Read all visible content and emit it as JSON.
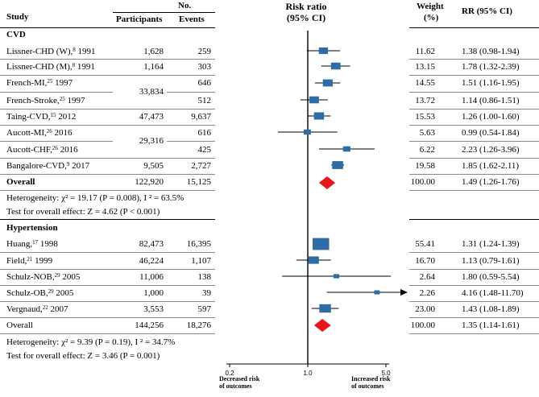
{
  "headers": {
    "study": "Study",
    "no": "No.",
    "participants": "Participants",
    "events": "Events",
    "rr_title1": "Risk ratio",
    "rr_title2": "(95% CI)",
    "weight1": "Weight",
    "weight2": "(%)",
    "rrci": "RR (95% CI)"
  },
  "groups": [
    {
      "name": "CVD",
      "rows": [
        {
          "label": "Lissner-CHD (W),",
          "ref": "8",
          "year": " 1991",
          "participants": "1,628",
          "events": "259",
          "weight": "11.62",
          "rr": "1.38 (0.98-1.94)"
        },
        {
          "label": "Lissner-CHD (M),",
          "ref": "8",
          "year": " 1991",
          "participants": "1,164",
          "events": "303",
          "weight": "13.15",
          "rr": "1.78 (1.32-2.39)"
        },
        {
          "label": "French-MI,",
          "ref": "25",
          "year": " 1997",
          "participants": "",
          "events": "646",
          "weight": "14.55",
          "rr": "1.51 (1.16-1.95)"
        },
        {
          "label": "French-Stroke,",
          "ref": "25",
          "year": " 1997",
          "participants": "",
          "events": "512",
          "weight": "13.72",
          "rr": "1.14 (0.86-1.51)"
        },
        {
          "label": "Taing-CVD,",
          "ref": "15",
          "year": " 2012",
          "participants": "47,473",
          "events": "9,637",
          "weight": "15.53",
          "rr": "1.26 (1.00-1.60)"
        },
        {
          "label": "Aucott-MI,",
          "ref": "26",
          "year": " 2016",
          "participants": "",
          "events": "616",
          "weight": "5.63",
          "rr": "0.99 (0.54-1.84)"
        },
        {
          "label": "Aucott-CHF,",
          "ref": "26",
          "year": " 2016",
          "participants": "",
          "events": "425",
          "weight": "6.22",
          "rr": "2.23 (1.26-3.96)"
        },
        {
          "label": "Bangalore-CVD,",
          "ref": "9",
          "year": " 2017",
          "participants": "9,505",
          "events": "2,727",
          "weight": "19.58",
          "rr": "1.85 (1.62-2.11)"
        }
      ],
      "shared_participants": [
        "33,834",
        "29,316"
      ],
      "overall": {
        "label": "Overall",
        "participants": "122,920",
        "events": "15,125",
        "weight": "100.00",
        "rr": "1.49 (1.26-1.76)"
      },
      "heterogeneity": "Heterogeneity: χ² = 19.17 (P = 0.008), I ² = 63.5%",
      "effect_test": "Test for overall effect: Z = 4.62 (P < 0.001)"
    },
    {
      "name": "Hypertension",
      "rows": [
        {
          "label": "Huang,",
          "ref": "17",
          "year": " 1998",
          "participants": "82,473",
          "events": "16,395",
          "weight": "55.41",
          "rr": "1.31 (1.24-1.39)"
        },
        {
          "label": "Field,",
          "ref": "21",
          "year": " 1999",
          "participants": "46,224",
          "events": "1,107",
          "weight": "16.70",
          "rr": "1.13 (0.79-1.61)"
        },
        {
          "label": "Schulz-NOB,",
          "ref": "29",
          "year": " 2005",
          "participants": "11,006",
          "events": "138",
          "weight": "2.64",
          "rr": "1.80 (0.59-5.54)"
        },
        {
          "label": "Schulz-OB,",
          "ref": "29",
          "year": " 2005",
          "participants": "1,000",
          "events": "39",
          "weight": "2.26",
          "rr": "4.16 (1.48-11.70)"
        },
        {
          "label": "Vergnaud,",
          "ref": "22",
          "year": " 2007",
          "participants": "3,553",
          "events": "597",
          "weight": "23.00",
          "rr": "1.43 (1.08-1.89)"
        }
      ],
      "overall": {
        "label": "Overall",
        "participants": "144,256",
        "events": "18,276",
        "weight": "100.00",
        "rr": "1.35 (1.14-1.61)"
      },
      "heterogeneity": "Heterogeneity: χ² = 9.39 (P = 0.19), I ² = 34.7%",
      "effect_test": "Test for overall effect: Z = 3.46 (P = 0.001)"
    }
  ],
  "axis": {
    "ticks": [
      "0.2",
      "1.0",
      "5.0"
    ],
    "left_label1": "Decreased risk",
    "left_label2": "of outcomes",
    "right_label1": "Increased risk",
    "right_label2": "of outcomes"
  },
  "chart_data": {
    "type": "forest",
    "scale": "log",
    "xlim": [
      0.2,
      5.0
    ],
    "reference_line": 1.0,
    "colors": {
      "study_marker": "#2e6da4",
      "overall_marker": "#e8151b"
    },
    "series": [
      {
        "name": "CVD",
        "studies": [
          {
            "rr": 1.38,
            "lo": 0.98,
            "hi": 1.94,
            "weight": 11.62
          },
          {
            "rr": 1.78,
            "lo": 1.32,
            "hi": 2.39,
            "weight": 13.15
          },
          {
            "rr": 1.51,
            "lo": 1.16,
            "hi": 1.95,
            "weight": 14.55
          },
          {
            "rr": 1.14,
            "lo": 0.86,
            "hi": 1.51,
            "weight": 13.72
          },
          {
            "rr": 1.26,
            "lo": 1.0,
            "hi": 1.6,
            "weight": 15.53
          },
          {
            "rr": 0.99,
            "lo": 0.54,
            "hi": 1.84,
            "weight": 5.63
          },
          {
            "rr": 2.23,
            "lo": 1.26,
            "hi": 3.96,
            "weight": 6.22
          },
          {
            "rr": 1.85,
            "lo": 1.62,
            "hi": 2.11,
            "weight": 19.58
          }
        ],
        "overall": {
          "rr": 1.49,
          "lo": 1.26,
          "hi": 1.76
        }
      },
      {
        "name": "Hypertension",
        "studies": [
          {
            "rr": 1.31,
            "lo": 1.24,
            "hi": 1.39,
            "weight": 55.41
          },
          {
            "rr": 1.13,
            "lo": 0.79,
            "hi": 1.61,
            "weight": 16.7
          },
          {
            "rr": 1.8,
            "lo": 0.59,
            "hi": 5.54,
            "weight": 2.64
          },
          {
            "rr": 4.16,
            "lo": 1.48,
            "hi": 11.7,
            "weight": 2.26,
            "arrow": true
          },
          {
            "rr": 1.43,
            "lo": 1.08,
            "hi": 1.89,
            "weight": 23.0
          }
        ],
        "overall": {
          "rr": 1.35,
          "lo": 1.14,
          "hi": 1.61
        }
      }
    ]
  }
}
